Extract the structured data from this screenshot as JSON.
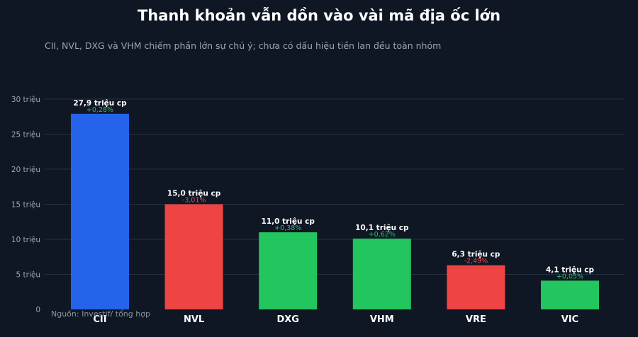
{
  "title": "Thanh khoản vẫn dồn vào vài mã địa ốc lớn",
  "subtitle": "CII, NVL, DXG và VHM chiếm phần lớn sự chú ý; chưa có dấu hiệu tiền lan đều toàn nhóm",
  "source": "Nguồn: Investif/ tổng hợp",
  "colors": {
    "background": "#0f1724",
    "grid": "#243042",
    "highlight": "#2563eb",
    "up": "#22c55e",
    "down": "#ef4444",
    "up_text": "#22c55e",
    "down_text": "#ef4444"
  },
  "chart_data": {
    "type": "bar",
    "title": "Thanh khoản vẫn dồn vào vài mã địa ốc lớn",
    "categories": [
      "CII",
      "NVL",
      "DXG",
      "VHM",
      "VRE",
      "VIC"
    ],
    "values": [
      27.9,
      15.0,
      11.0,
      10.1,
      6.3,
      4.1
    ],
    "value_labels": [
      "27,9 triệu cp",
      "15,0 triệu cp",
      "11,0 triệu cp",
      "10,1 triệu cp",
      "6,3 triệu cp",
      "4,1 triệu cp"
    ],
    "change_labels": [
      "+0,28%",
      "-3,01%",
      "+0,38%",
      "+0,62%",
      "-2,49%",
      "+0,05%"
    ],
    "bar_colors": [
      "#2563eb",
      "#ef4444",
      "#22c55e",
      "#22c55e",
      "#ef4444",
      "#22c55e"
    ],
    "change_colors": [
      "#22c55e",
      "#ef4444",
      "#22c55e",
      "#22c55e",
      "#ef4444",
      "#22c55e"
    ],
    "y_ticks": [
      0,
      5,
      10,
      15,
      20,
      25,
      30
    ],
    "y_tick_labels": [
      "0",
      "5 triệu",
      "10 triệu",
      "15 triệu",
      "20 triệu",
      "25 triệu",
      "30 triệu"
    ],
    "ylim": [
      0,
      30
    ],
    "xlabel": "",
    "ylabel": "",
    "grid": true
  }
}
